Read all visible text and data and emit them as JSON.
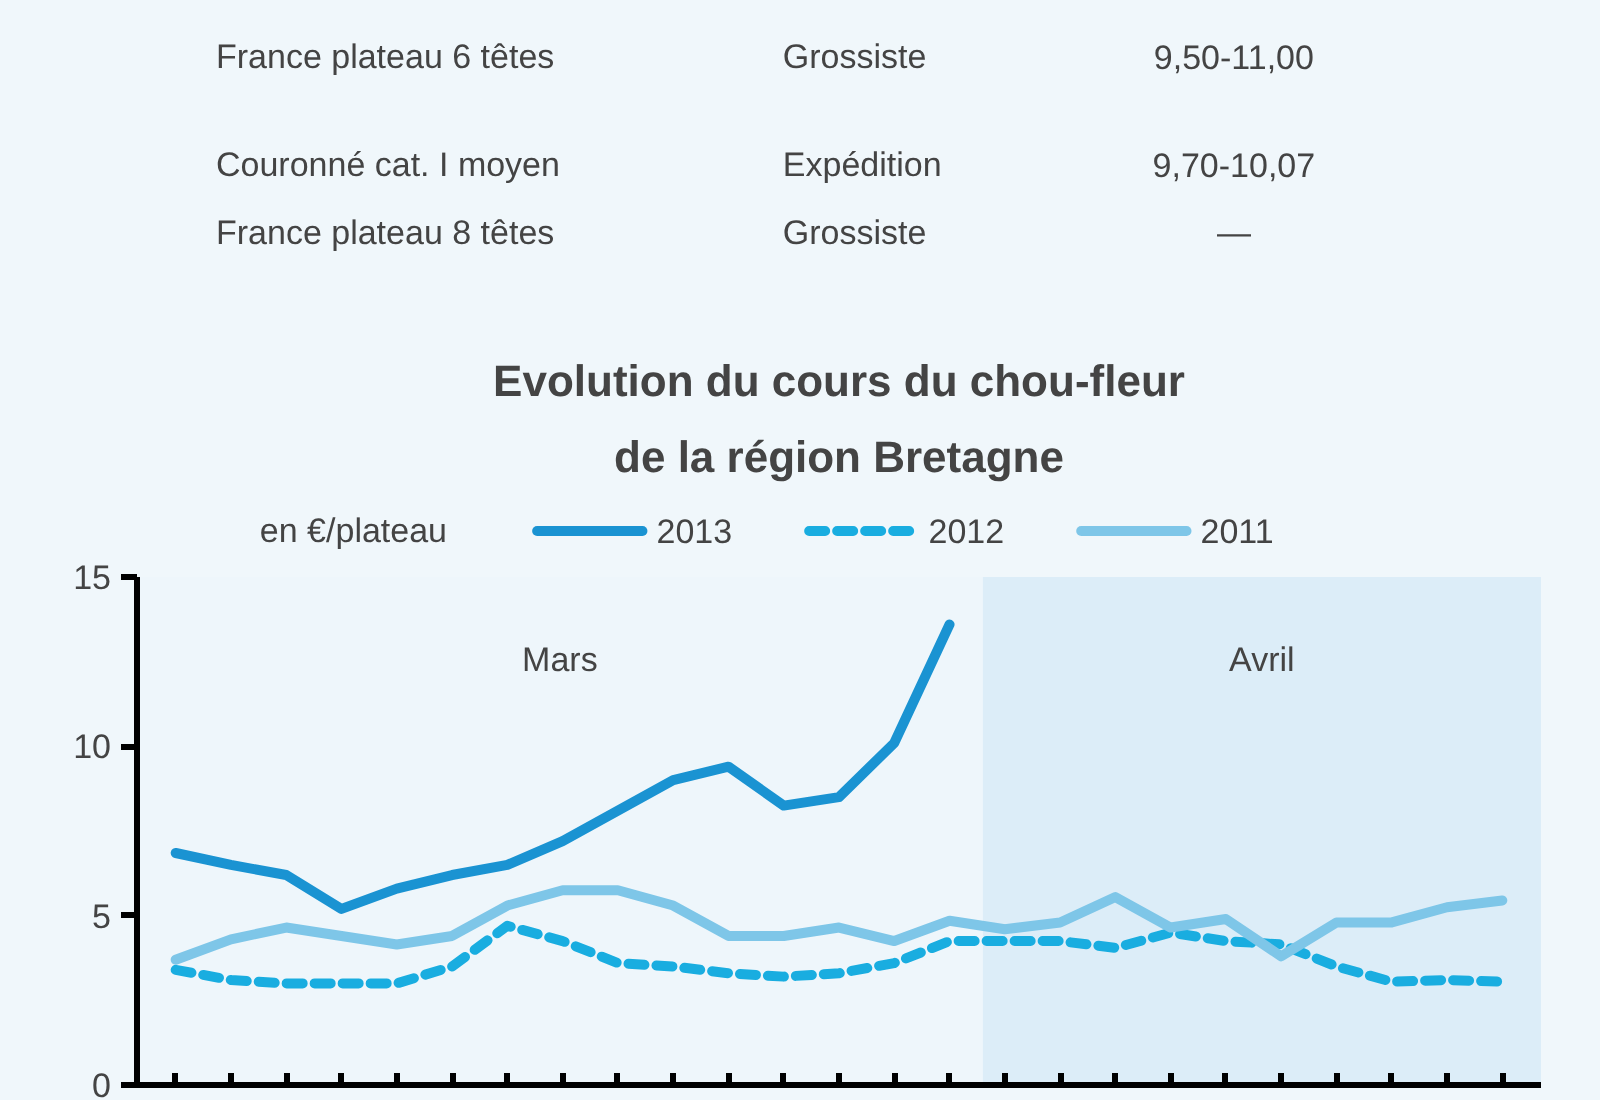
{
  "chart_data": {
    "type": "line",
    "title": "Evolution du cours du chou-fleur de la région Bretagne",
    "ylabel": "en €/plateau",
    "categories": [
      null,
      null,
      null,
      null,
      null,
      null,
      null,
      null,
      null,
      null,
      null,
      null,
      null,
      null,
      null,
      null,
      null,
      null,
      null,
      null,
      null,
      null,
      null,
      null,
      null
    ],
    "series": [
      {
        "name": "2013",
        "color": "#1a93d2",
        "line_style": "solid",
        "values": [
          6.85,
          6.5,
          6.2,
          5.2,
          5.8,
          6.2,
          6.5,
          7.2,
          8.1,
          9.0,
          9.4,
          8.25,
          8.5,
          10.1,
          13.6,
          null,
          null,
          null,
          null,
          null,
          null,
          null,
          null,
          null,
          null
        ]
      },
      {
        "name": "2012",
        "color": "#19ade0",
        "line_style": "dashed",
        "values": [
          3.4,
          3.1,
          3.0,
          3.0,
          3.0,
          3.5,
          4.7,
          4.25,
          3.6,
          3.5,
          3.3,
          3.2,
          3.3,
          3.6,
          4.25,
          4.25,
          4.25,
          4.05,
          4.5,
          4.25,
          4.15,
          3.5,
          3.05,
          3.1,
          3.05
        ]
      },
      {
        "name": "2011",
        "color": "#7ec6e8",
        "line_style": "solid",
        "values": [
          3.7,
          4.3,
          4.65,
          4.4,
          4.15,
          4.4,
          5.3,
          5.75,
          5.75,
          5.3,
          4.4,
          4.4,
          4.65,
          4.25,
          4.85,
          4.6,
          4.8,
          5.55,
          4.65,
          4.9,
          3.8,
          4.8,
          4.8,
          5.25,
          5.45
        ]
      }
    ],
    "ylim": [
      0,
      15
    ],
    "yticks": [
      0,
      5,
      10,
      15
    ],
    "tick_labels": "y",
    "legend": "top",
    "annotations": [
      "France plateau 6 têtes",
      "Grossiste",
      "9,50-11,00",
      "Couronné cat. I moyen",
      "Expédition",
      "9,70-10,07",
      "France plateau 8 têtes",
      "Grossiste",
      "—",
      "Mars",
      "Avril"
    ]
  }
}
